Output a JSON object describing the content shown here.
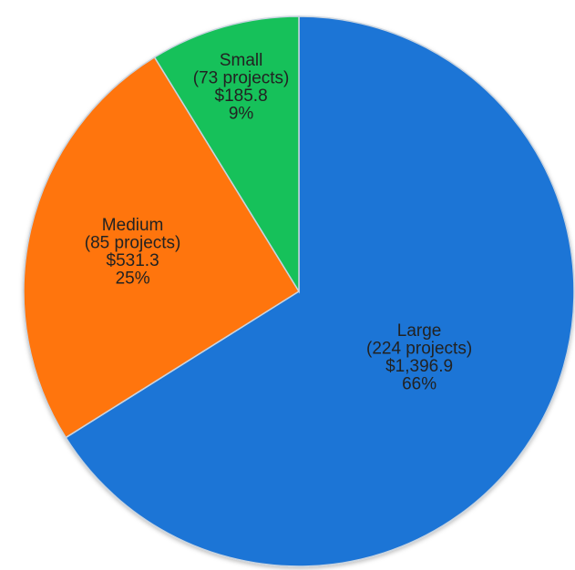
{
  "chart_data": {
    "type": "pie",
    "title": "",
    "start_angle_deg": 0,
    "direction": "clockwise",
    "slices": [
      {
        "key": "large",
        "name": "Large",
        "count_label": "(224 projects)",
        "amount_label": "$1,396.9",
        "percent_label": "66%",
        "value": 1396.9,
        "color": "#1f74d6"
      },
      {
        "key": "medium",
        "name": "Medium",
        "count_label": "(85 projects)",
        "amount_label": "$531.3",
        "percent_label": "25%",
        "value": 531.3,
        "color": "#ff7410"
      },
      {
        "key": "small",
        "name": "Small",
        "count_label": "(73 projects)",
        "amount_label": "$185.8",
        "percent_label": "9%",
        "value": 185.8,
        "color": "#17c15a"
      }
    ]
  }
}
